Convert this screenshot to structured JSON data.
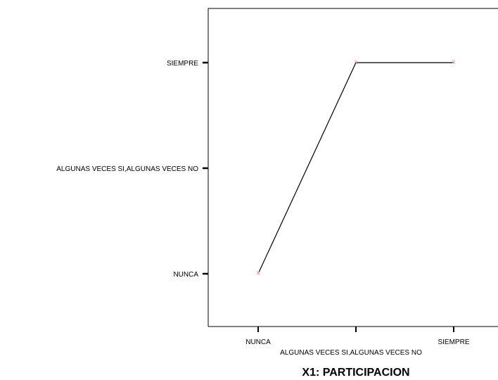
{
  "chart_data": {
    "type": "line",
    "title": "",
    "xlabel": "X1: PARTICIPACION",
    "ylabel": "",
    "categories": [
      "NUNCA",
      "ALGUNAS VECES SI,ALGUNAS VECES NO",
      "SIEMPRE"
    ],
    "y_categories": [
      "NUNCA",
      "ALGUNAS VECES SI,ALGUNAS VECES NO",
      "SIEMPRE"
    ],
    "series": [
      {
        "values": [
          "NUNCA",
          "SIEMPRE",
          "SIEMPRE"
        ]
      }
    ],
    "grid": false,
    "legend": "none",
    "line_color": "#000000",
    "marker_color": "#f4a6a6",
    "axis_color": "#000000"
  }
}
